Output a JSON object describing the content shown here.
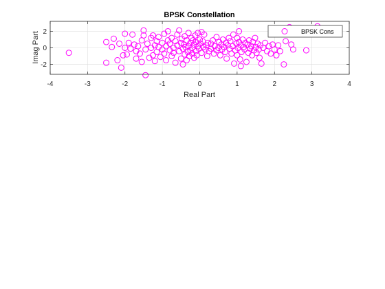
{
  "chart_data": {
    "type": "scatter",
    "title": "BPSK Constellation",
    "xlabel": "Real Part",
    "ylabel": "Imag Part",
    "xlim": [
      -4,
      4
    ],
    "ylim": [
      -3.2,
      3.2
    ],
    "xticks": [
      "-4",
      "-3",
      "-2",
      "-1",
      "0",
      "1",
      "2",
      "3",
      "4"
    ],
    "yticks": [
      "-2",
      "0",
      "2"
    ],
    "grid": true,
    "legend_position": "top-right",
    "marker": "open-circle",
    "series": [
      {
        "name": "BPSK Cons",
        "color": "#ff00ff",
        "points": [
          [
            -3.5,
            -0.6
          ],
          [
            -2.5,
            0.7
          ],
          [
            -2.5,
            -1.8
          ],
          [
            -2.35,
            0.1
          ],
          [
            -2.3,
            1.1
          ],
          [
            -2.2,
            -1.5
          ],
          [
            -2.15,
            0.5
          ],
          [
            -2.1,
            -2.4
          ],
          [
            -2.05,
            -0.9
          ],
          [
            -2.0,
            1.7
          ],
          [
            -2.0,
            0.0
          ],
          [
            -1.95,
            -0.8
          ],
          [
            -1.9,
            0.6
          ],
          [
            -1.85,
            -0.1
          ],
          [
            -1.8,
            1.6
          ],
          [
            -1.75,
            0.4
          ],
          [
            -1.7,
            -0.4
          ],
          [
            -1.7,
            -1.3
          ],
          [
            -1.65,
            0.2
          ],
          [
            -1.6,
            -0.7
          ],
          [
            -1.55,
            0.9
          ],
          [
            -1.55,
            -1.7
          ],
          [
            -1.5,
            1.5
          ],
          [
            -1.5,
            2.1
          ],
          [
            -1.45,
            -0.2
          ],
          [
            -1.45,
            -3.3
          ],
          [
            -1.4,
            0.5
          ],
          [
            -1.35,
            -1.2
          ],
          [
            -1.3,
            1.2
          ],
          [
            -1.3,
            0.0
          ],
          [
            -1.25,
            1.5
          ],
          [
            -1.25,
            -0.9
          ],
          [
            -1.2,
            0.3
          ],
          [
            -1.2,
            -1.6
          ],
          [
            -1.15,
            0.8
          ],
          [
            -1.15,
            -0.5
          ],
          [
            -1.1,
            1.3
          ],
          [
            -1.1,
            0.1
          ],
          [
            -1.05,
            -1.1
          ],
          [
            -1.0,
            0.6
          ],
          [
            -1.0,
            -0.2
          ],
          [
            -0.95,
            1.7
          ],
          [
            -0.95,
            -0.7
          ],
          [
            -0.9,
            0.2
          ],
          [
            -0.9,
            -1.5
          ],
          [
            -0.85,
            2.0
          ],
          [
            -0.85,
            0.9
          ],
          [
            -0.8,
            -0.3
          ],
          [
            -0.8,
            0.5
          ],
          [
            -0.75,
            -1.0
          ],
          [
            -0.75,
            1.2
          ],
          [
            -0.7,
            0.0
          ],
          [
            -0.7,
            -0.6
          ],
          [
            -0.65,
            0.8
          ],
          [
            -0.65,
            -1.8
          ],
          [
            -0.6,
            1.6
          ],
          [
            -0.6,
            0.3
          ],
          [
            -0.55,
            -0.4
          ],
          [
            -0.55,
            2.1
          ],
          [
            -0.5,
            -1.3
          ],
          [
            -0.5,
            0.6
          ],
          [
            -0.48,
            1.1
          ],
          [
            -0.45,
            -0.1
          ],
          [
            -0.45,
            -2.0
          ],
          [
            -0.42,
            0.4
          ],
          [
            -0.4,
            -0.8
          ],
          [
            -0.4,
            1.4
          ],
          [
            -0.38,
            0.1
          ],
          [
            -0.35,
            -1.5
          ],
          [
            -0.35,
            0.9
          ],
          [
            -0.32,
            -0.5
          ],
          [
            -0.3,
            1.8
          ],
          [
            -0.3,
            0.2
          ],
          [
            -0.28,
            -1.0
          ],
          [
            -0.25,
            0.6
          ],
          [
            -0.25,
            -0.3
          ],
          [
            -0.22,
            1.2
          ],
          [
            -0.2,
            -0.7
          ],
          [
            -0.2,
            0.0
          ],
          [
            -0.18,
            0.9
          ],
          [
            -0.15,
            -1.2
          ],
          [
            -0.15,
            0.4
          ],
          [
            -0.12,
            1.5
          ],
          [
            -0.1,
            -0.4
          ],
          [
            -0.1,
            0.7
          ],
          [
            -0.08,
            -0.9
          ],
          [
            -0.05,
            1.8
          ],
          [
            -0.05,
            0.2
          ],
          [
            -0.02,
            -0.1
          ],
          [
            0.0,
            1.0
          ],
          [
            0.02,
            0.5
          ],
          [
            0.05,
            1.9
          ],
          [
            0.05,
            -0.6
          ],
          [
            0.08,
            0.8
          ],
          [
            0.1,
            0.1
          ],
          [
            0.12,
            1.6
          ],
          [
            0.15,
            -0.2
          ],
          [
            0.18,
            0.3
          ],
          [
            0.2,
            -1.0
          ],
          [
            0.22,
            0.6
          ],
          [
            0.25,
            -0.4
          ],
          [
            0.3,
            -0.1
          ],
          [
            0.3,
            0.5
          ],
          [
            0.35,
            0.9
          ],
          [
            0.38,
            -0.7
          ],
          [
            0.4,
            0.2
          ],
          [
            0.45,
            1.3
          ],
          [
            0.45,
            -0.3
          ],
          [
            0.5,
            0.0
          ],
          [
            0.52,
            0.7
          ],
          [
            0.55,
            -0.9
          ],
          [
            0.58,
            0.4
          ],
          [
            0.6,
            -0.2
          ],
          [
            0.62,
            1.0
          ],
          [
            0.65,
            0.1
          ],
          [
            0.68,
            -0.5
          ],
          [
            0.7,
            0.6
          ],
          [
            0.72,
            -1.3
          ],
          [
            0.75,
            0.3
          ],
          [
            0.78,
            1.2
          ],
          [
            0.8,
            -0.1
          ],
          [
            0.82,
            0.8
          ],
          [
            0.85,
            -0.7
          ],
          [
            0.88,
            0.2
          ],
          [
            0.9,
            1.6
          ],
          [
            0.92,
            -1.9
          ],
          [
            0.95,
            -0.3
          ],
          [
            0.98,
            0.5
          ],
          [
            1.0,
            1.2
          ],
          [
            1.0,
            -0.9
          ],
          [
            1.02,
            0.0
          ],
          [
            1.05,
            2.0
          ],
          [
            1.05,
            0.7
          ],
          [
            1.08,
            -1.4
          ],
          [
            1.1,
            -2.2
          ],
          [
            1.1,
            0.3
          ],
          [
            1.12,
            -0.5
          ],
          [
            1.15,
            1.0
          ],
          [
            1.18,
            0.1
          ],
          [
            1.2,
            -0.2
          ],
          [
            1.22,
            0.6
          ],
          [
            1.25,
            -1.7
          ],
          [
            1.28,
            0.4
          ],
          [
            1.3,
            -0.6
          ],
          [
            1.32,
            0.9
          ],
          [
            1.35,
            -0.1
          ],
          [
            1.38,
            0.2
          ],
          [
            1.4,
            -0.9
          ],
          [
            1.42,
            0.7
          ],
          [
            1.45,
            -0.3
          ],
          [
            1.48,
            1.2
          ],
          [
            1.5,
            0.1
          ],
          [
            1.52,
            -0.6
          ],
          [
            1.55,
            0.5
          ],
          [
            1.58,
            -0.2
          ],
          [
            1.6,
            -1.2
          ],
          [
            1.62,
            0.3
          ],
          [
            1.65,
            -1.9
          ],
          [
            1.7,
            0.0
          ],
          [
            1.75,
            0.6
          ],
          [
            1.8,
            -0.4
          ],
          [
            1.85,
            0.2
          ],
          [
            1.9,
            -0.7
          ],
          [
            1.95,
            0.4
          ],
          [
            2.0,
            -0.2
          ],
          [
            2.05,
            -0.9
          ],
          [
            2.1,
            0.3
          ],
          [
            2.15,
            -0.4
          ],
          [
            2.25,
            -2.0
          ],
          [
            2.3,
            0.8
          ],
          [
            2.4,
            2.5
          ],
          [
            2.45,
            0.4
          ],
          [
            2.5,
            -0.2
          ],
          [
            2.85,
            -0.3
          ],
          [
            3.15,
            2.6
          ]
        ]
      }
    ]
  }
}
